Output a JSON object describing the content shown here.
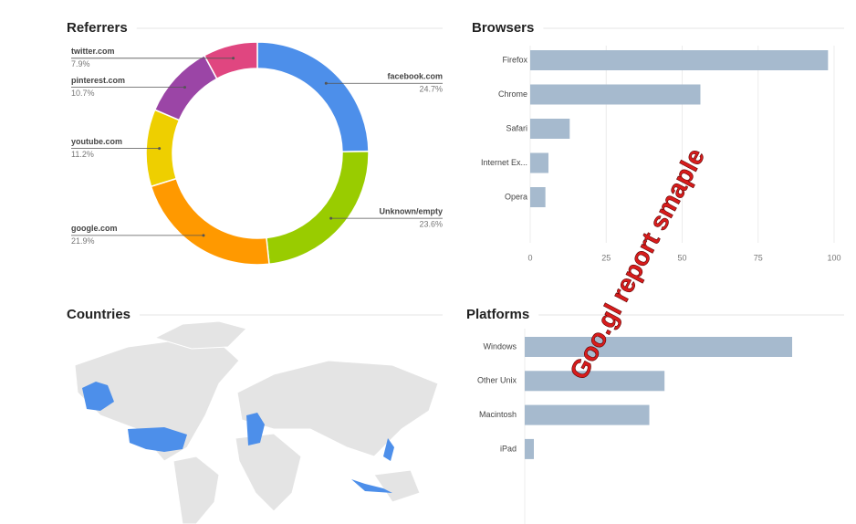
{
  "watermark": "Goo.gl report smaple",
  "chart_data": [
    {
      "type": "donut",
      "title": "Referrers",
      "categories": [
        "facebook.com",
        "Unknown/empty",
        "google.com",
        "youtube.com",
        "pinterest.com",
        "twitter.com"
      ],
      "values": [
        24.7,
        23.6,
        21.9,
        11.2,
        10.7,
        7.9
      ],
      "value_labels": [
        "24.7%",
        "23.6%",
        "21.9%",
        "11.2%",
        "10.7%",
        "7.9%"
      ],
      "colors": [
        "#4d8fea",
        "#99cc00",
        "#ff9900",
        "#eecf00",
        "#9b45a6",
        "#e04680"
      ]
    },
    {
      "type": "bar",
      "orientation": "horizontal",
      "title": "Browsers",
      "categories": [
        "Firefox",
        "Chrome",
        "Safari",
        "Internet Ex...",
        "Opera"
      ],
      "values": [
        98,
        56,
        13,
        6,
        5
      ],
      "color": "#a6bace",
      "xlim": [
        0,
        100
      ],
      "xticks": [
        0,
        25,
        50,
        75,
        100
      ],
      "grid": true
    },
    {
      "type": "map",
      "title": "Countries"
    },
    {
      "type": "bar",
      "orientation": "horizontal",
      "title": "Platforms",
      "categories": [
        "Windows",
        "Other Unix",
        "Macintosh",
        "iPad"
      ],
      "values": [
        88,
        46,
        41,
        3
      ],
      "color": "#a6bace",
      "xlim": [
        0,
        100
      ]
    }
  ]
}
